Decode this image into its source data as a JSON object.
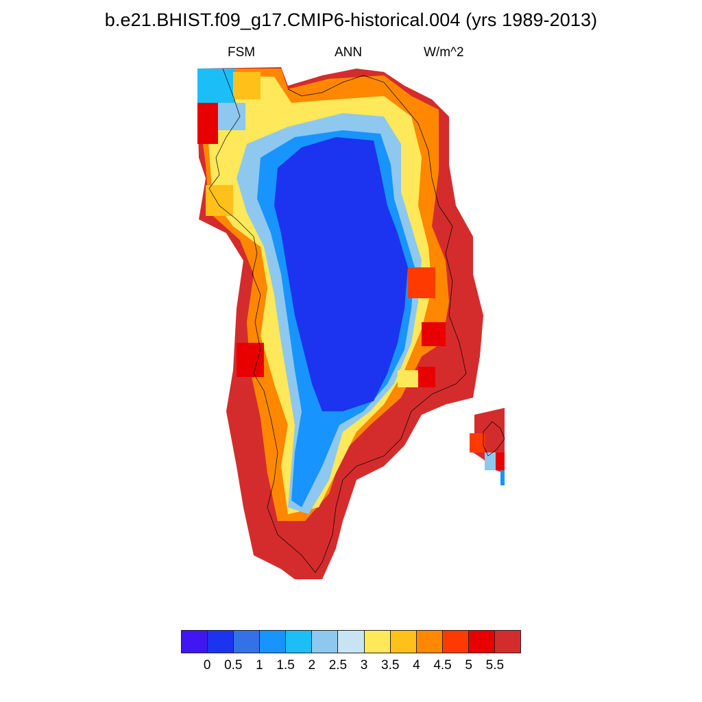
{
  "title": "b.e21.BHIST.f09_g17.CMIP6-historical.004 (yrs 1989-2013)",
  "subtitle": {
    "left": "FSM",
    "center": "ANN",
    "right": "W/m^2"
  },
  "colorbar": {
    "colors": [
      "#4016f2",
      "#1c34f0",
      "#3470e6",
      "#1894ff",
      "#1cbef8",
      "#8ec8ee",
      "#c8e4f4",
      "#ffe85a",
      "#ffc01a",
      "#ff8800",
      "#ff3a00",
      "#e80000",
      "#d42c2c"
    ],
    "labels": [
      "0",
      "0.5",
      "1",
      "1.5",
      "2",
      "2.5",
      "3",
      "3.5",
      "4",
      "4.5",
      "5",
      "5.5"
    ]
  },
  "map": {
    "region_colors": {
      "ocean": "#ffffff",
      "interior": "#1c34f0",
      "outer": "#d42c2c",
      "coastline": "#000000"
    }
  }
}
